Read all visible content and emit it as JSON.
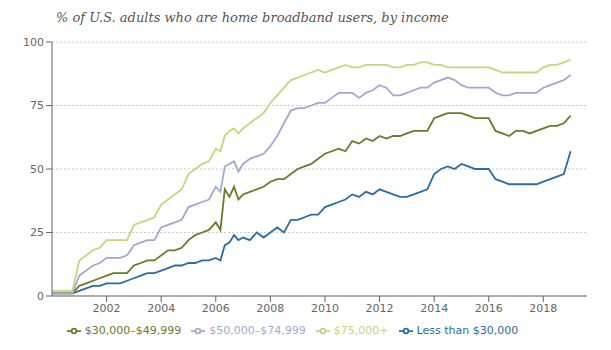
{
  "chart_data": {
    "type": "line",
    "title": "% of U.S. adults who are home broadband users, by income",
    "x": [
      2000,
      2000.25,
      2000.5,
      2000.75,
      2001,
      2001.25,
      2001.5,
      2001.75,
      2002,
      2002.25,
      2002.5,
      2002.75,
      2003,
      2003.25,
      2003.5,
      2003.75,
      2004,
      2004.25,
      2004.5,
      2004.75,
      2005,
      2005.25,
      2005.5,
      2005.75,
      2006,
      2006.17,
      2006.33,
      2006.5,
      2006.67,
      2006.83,
      2007,
      2007.25,
      2007.5,
      2007.75,
      2008,
      2008.25,
      2008.5,
      2008.75,
      2009,
      2009.25,
      2009.5,
      2009.75,
      2010,
      2010.25,
      2010.5,
      2010.75,
      2011,
      2011.25,
      2011.5,
      2011.75,
      2012,
      2012.25,
      2012.5,
      2012.75,
      2013,
      2013.25,
      2013.5,
      2013.75,
      2014,
      2014.25,
      2014.5,
      2014.75,
      2015,
      2015.25,
      2015.5,
      2015.75,
      2016,
      2016.25,
      2016.5,
      2016.75,
      2017,
      2017.25,
      2017.5,
      2017.75,
      2018,
      2018.25,
      2018.5,
      2018.75,
      2019
    ],
    "series": [
      {
        "name": "Less than $30,000",
        "color": "#2b6ca3",
        "values": [
          1,
          1,
          1,
          1,
          2,
          3,
          4,
          4,
          5,
          5,
          5,
          6,
          7,
          8,
          9,
          9,
          10,
          11,
          12,
          12,
          13,
          13,
          14,
          14,
          15,
          14,
          20,
          21,
          24,
          22,
          23,
          22,
          25,
          23,
          25,
          27,
          25,
          30,
          30,
          31,
          32,
          32,
          35,
          36,
          37,
          38,
          40,
          39,
          41,
          40,
          42,
          41,
          40,
          39,
          39,
          40,
          41,
          42,
          48,
          50,
          51,
          50,
          52,
          51,
          50,
          50,
          50,
          46,
          45,
          44,
          44,
          44,
          44,
          44,
          45,
          46,
          47,
          48,
          57
        ]
      },
      {
        "name": "$30,000–$49,999",
        "color": "#6b7a2a",
        "values": [
          1,
          1,
          1,
          1,
          4,
          5,
          6,
          7,
          8,
          9,
          9,
          9,
          12,
          13,
          14,
          14,
          16,
          18,
          18,
          19,
          22,
          24,
          25,
          26,
          29,
          26,
          42,
          39,
          43,
          38,
          40,
          41,
          42,
          43,
          45,
          46,
          46,
          48,
          50,
          51,
          52,
          54,
          56,
          57,
          58,
          57,
          61,
          60,
          62,
          61,
          63,
          62,
          63,
          63,
          64,
          65,
          65,
          65,
          70,
          71,
          72,
          72,
          72,
          71,
          70,
          70,
          70,
          65,
          64,
          63,
          65,
          65,
          64,
          65,
          66,
          67,
          67,
          68,
          71
        ]
      },
      {
        "name": "$50,000–$74,999",
        "color": "#a0aace",
        "values": [
          1,
          1,
          1,
          1,
          8,
          10,
          12,
          13,
          15,
          15,
          15,
          16,
          20,
          21,
          22,
          22,
          27,
          28,
          29,
          30,
          35,
          36,
          37,
          38,
          43,
          41,
          51,
          52,
          53,
          49,
          52,
          54,
          55,
          56,
          59,
          63,
          68,
          73,
          74,
          74,
          75,
          76,
          76,
          78,
          80,
          80,
          80,
          78,
          80,
          81,
          83,
          82,
          79,
          79,
          80,
          81,
          82,
          82,
          84,
          85,
          86,
          85,
          83,
          82,
          82,
          82,
          82,
          80,
          79,
          79,
          80,
          80,
          80,
          80,
          82,
          83,
          84,
          85,
          87
        ]
      },
      {
        "name": "$75,000+",
        "color": "#c9d47c",
        "values": [
          2,
          2,
          2,
          2,
          14,
          16,
          18,
          19,
          22,
          22,
          22,
          22,
          28,
          29,
          30,
          31,
          36,
          38,
          40,
          42,
          48,
          50,
          52,
          53,
          58,
          57,
          63,
          65,
          66,
          64,
          66,
          68,
          70,
          72,
          76,
          79,
          82,
          85,
          86,
          87,
          88,
          89,
          88,
          89,
          90,
          91,
          90,
          90,
          91,
          91,
          91,
          91,
          90,
          90,
          91,
          91,
          92,
          92,
          91,
          91,
          90,
          90,
          90,
          90,
          90,
          90,
          90,
          89,
          88,
          88,
          88,
          88,
          88,
          88,
          90,
          91,
          91,
          92,
          93
        ]
      }
    ],
    "xlim": [
      2000,
      2019.6
    ],
    "xticks": [
      2002,
      2004,
      2006,
      2008,
      2010,
      2012,
      2014,
      2016,
      2018
    ],
    "ylim": [
      0,
      100
    ],
    "yticks": [
      0,
      25,
      50,
      75,
      100
    ],
    "grid": true,
    "legend": "bottom"
  }
}
